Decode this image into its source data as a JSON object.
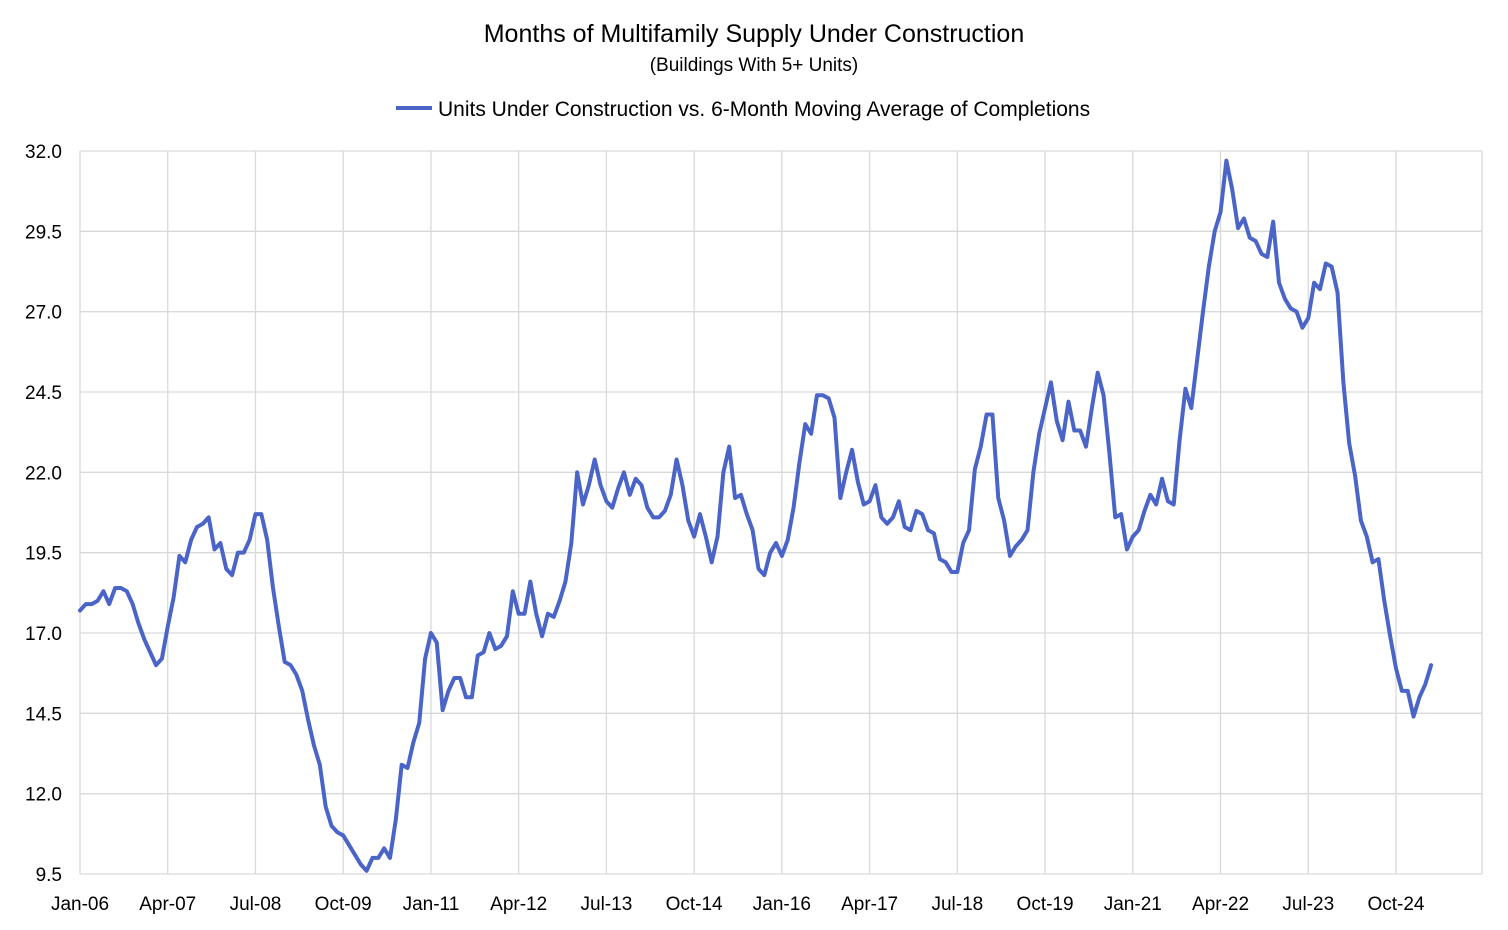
{
  "chart_data": {
    "type": "line",
    "title": "Months of Multifamily Supply Under Construction",
    "subtitle": "(Buildings With 5+ Units)",
    "legend_position": "top-center",
    "xlabel": "",
    "ylabel": "",
    "ylim": [
      9.5,
      32.0
    ],
    "yticks": [
      "32.0",
      "29.5",
      "27.0",
      "24.5",
      "22.0",
      "19.5",
      "17.0",
      "14.5",
      "12.0",
      "9.5"
    ],
    "xticks": [
      "Jan-06",
      "Apr-07",
      "Jul-08",
      "Oct-09",
      "Jan-11",
      "Apr-12",
      "Jul-13",
      "Oct-14",
      "Jan-16",
      "Apr-17",
      "Jul-18",
      "Oct-19",
      "Jan-21",
      "Apr-22",
      "Jul-23",
      "Oct-24"
    ],
    "grid": true,
    "color": "#4a64c8",
    "x_start": "2006-01",
    "series": [
      {
        "name": "Units Under Construction vs. 6-Month Moving Average of Completions",
        "values": [
          17.7,
          17.9,
          17.9,
          18.0,
          18.3,
          17.9,
          18.4,
          18.4,
          18.3,
          17.9,
          17.3,
          16.8,
          16.4,
          16.0,
          16.2,
          17.2,
          18.1,
          19.4,
          19.2,
          19.9,
          20.3,
          20.4,
          20.6,
          19.6,
          19.8,
          19.0,
          18.8,
          19.5,
          19.5,
          19.9,
          20.7,
          20.7,
          19.9,
          18.4,
          17.2,
          16.1,
          16.0,
          15.7,
          15.2,
          14.3,
          13.5,
          12.9,
          11.6,
          11.0,
          10.8,
          10.7,
          10.4,
          10.1,
          9.8,
          9.6,
          10.0,
          10.0,
          10.3,
          10.0,
          11.2,
          12.9,
          12.8,
          13.6,
          14.2,
          16.2,
          17.0,
          16.7,
          14.6,
          15.2,
          15.6,
          15.6,
          15.0,
          15.0,
          16.3,
          16.4,
          17.0,
          16.5,
          16.6,
          16.9,
          18.3,
          17.6,
          17.6,
          18.6,
          17.6,
          16.9,
          17.6,
          17.5,
          18.0,
          18.6,
          19.8,
          22.0,
          21.0,
          21.6,
          22.4,
          21.6,
          21.1,
          20.9,
          21.5,
          22.0,
          21.3,
          21.8,
          21.6,
          20.9,
          20.6,
          20.6,
          20.8,
          21.3,
          22.4,
          21.6,
          20.5,
          20.0,
          20.7,
          20.0,
          19.2,
          20.0,
          22.0,
          22.8,
          21.2,
          21.3,
          20.7,
          20.2,
          19.0,
          18.8,
          19.5,
          19.8,
          19.4,
          19.9,
          20.9,
          22.3,
          23.5,
          23.2,
          24.4,
          24.4,
          24.3,
          23.7,
          21.2,
          22.0,
          22.7,
          21.7,
          21.0,
          21.1,
          21.6,
          20.6,
          20.4,
          20.6,
          21.1,
          20.3,
          20.2,
          20.8,
          20.7,
          20.2,
          20.1,
          19.3,
          19.2,
          18.9,
          18.9,
          19.8,
          20.2,
          22.1,
          22.8,
          23.8,
          23.8,
          21.2,
          20.5,
          19.4,
          19.7,
          19.9,
          20.2,
          22.0,
          23.2,
          24.0,
          24.8,
          23.6,
          23.0,
          24.2,
          23.3,
          23.3,
          22.8,
          24.0,
          25.1,
          24.4,
          22.6,
          20.6,
          20.7,
          19.6,
          20.0,
          20.2,
          20.8,
          21.3,
          21.0,
          21.8,
          21.1,
          21.0,
          23.0,
          24.6,
          24.0,
          25.5,
          27.0,
          28.4,
          29.5,
          30.1,
          31.7,
          30.8,
          29.6,
          29.9,
          29.3,
          29.2,
          28.8,
          28.7,
          29.8,
          27.9,
          27.4,
          27.1,
          27.0,
          26.5,
          26.8,
          27.9,
          27.7,
          28.5,
          28.4,
          27.6,
          24.8,
          22.9,
          21.9,
          20.5,
          20.0,
          19.2,
          19.3,
          18.0,
          16.9,
          15.9,
          15.2,
          15.2,
          14.4,
          15.0,
          15.4,
          16.0
        ]
      }
    ]
  }
}
